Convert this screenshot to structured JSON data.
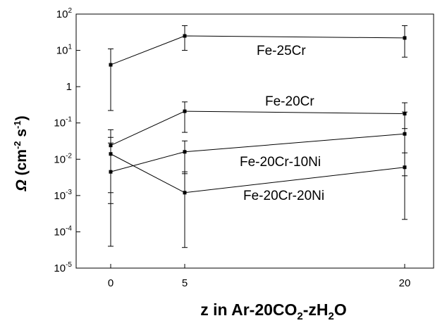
{
  "chart_data": {
    "type": "line",
    "title": "",
    "xlabel": "z in Ar-20CO₂-zH₂O",
    "xlabel_parts": {
      "pre": "z in Ar-20CO",
      "sub1": "2",
      "mid": "-zH",
      "sub2": "2",
      "post": "O"
    },
    "ylabel": "Ω (cm⁻² s⁻¹)",
    "ylabel_parts": {
      "omega": "Ω",
      "open": " (cm",
      "exp1": "-2",
      "mid": " s",
      "exp2": "-1",
      "close": ")"
    },
    "x_scale": "categorical-spaced",
    "x": [
      0,
      5,
      20
    ],
    "x_tick_labels": [
      "0",
      "5",
      "20"
    ],
    "y_scale": "log",
    "ylim": [
      1e-05,
      100
    ],
    "y_tick_labels": [
      {
        "base": "10",
        "exp": "-5"
      },
      {
        "base": "10",
        "exp": "-4"
      },
      {
        "base": "10",
        "exp": "-3"
      },
      {
        "base": "10",
        "exp": "-2"
      },
      {
        "base": "10",
        "exp": "-1"
      },
      {
        "base": "1",
        "exp": ""
      },
      {
        "base": "10",
        "exp": "1"
      },
      {
        "base": "10",
        "exp": "2"
      }
    ],
    "grid": false,
    "legend": "inline labels",
    "series": [
      {
        "name": "Fe-25Cr",
        "values": [
          4.0,
          25.0,
          22.0
        ],
        "err_low": [
          0.22,
          10.0,
          6.5
        ],
        "err_high": [
          11.0,
          48.0,
          48.0
        ]
      },
      {
        "name": "Fe-20Cr",
        "values": [
          0.024,
          0.21,
          0.18
        ],
        "err_low": [
          0.0012,
          0.055,
          0.07
        ],
        "err_high": [
          0.065,
          0.38,
          0.36
        ]
      },
      {
        "name": "Fe-20Cr-10Ni",
        "values": [
          0.0045,
          0.016,
          0.05
        ],
        "err_low": [
          0.0006,
          0.004,
          0.0035
        ],
        "err_high": [
          0.04,
          0.032,
          0.2
        ]
      },
      {
        "name": "Fe-20Cr-20Ni",
        "values": [
          0.014,
          0.0012,
          0.006
        ],
        "err_low": [
          4e-05,
          3.7e-05,
          0.00022
        ],
        "err_high": [
          0.028,
          0.0045,
          0.015
        ]
      }
    ]
  }
}
